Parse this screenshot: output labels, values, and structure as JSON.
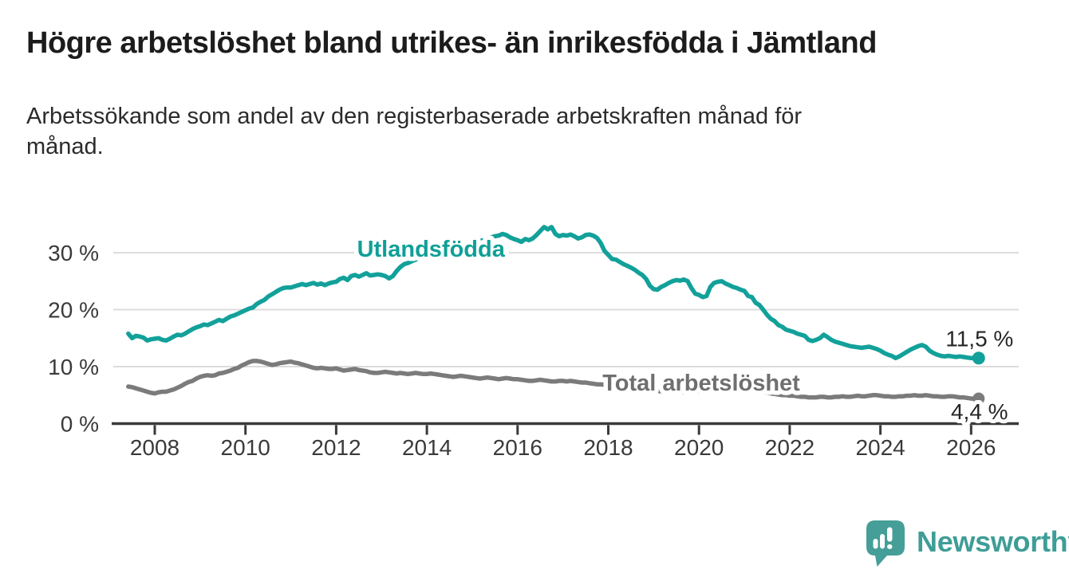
{
  "title": "Högre arbetslöshet bland utrikes- än inrikesfödda i Jämtland",
  "subtitle": "Arbetssökande som andel av den registerbaserade arbetskraften månad för månad.",
  "branding": {
    "logo_text": "Newsworthy",
    "logo_icon": "bar-chart-speech-bubble",
    "icon_color": "#459e98",
    "text_color": "#3f9d97"
  },
  "chart_data": {
    "type": "line",
    "title": "Högre arbetslöshet bland utrikes- än inrikesfödda i Jämtland",
    "xlabel": "",
    "ylabel": "",
    "grid": "horizontal",
    "x_axis": {
      "tick_years": [
        2008,
        2010,
        2012,
        2014,
        2016,
        2018,
        2020,
        2022,
        2024,
        2026
      ],
      "range_years": [
        2007.3,
        2027.1
      ]
    },
    "y_axis": {
      "unit": "%",
      "range": [
        0,
        36.5
      ],
      "ticks": [
        {
          "value": 0,
          "label": "0 %"
        },
        {
          "value": 10,
          "label": "10 %"
        },
        {
          "value": 20,
          "label": "20 %"
        },
        {
          "value": 30,
          "label": "30 %"
        }
      ]
    },
    "series": [
      {
        "id": "utlandsfodda",
        "name": "Utlandsfödda",
        "color": "#12a19a",
        "label_color": "#0fa097",
        "width": 5.5,
        "dot_r": 8,
        "label_at": {
          "year": 2014.09,
          "pct": 29.3
        },
        "end_label": {
          "text": "11,5 %",
          "dy": -15
        },
        "start_year": 2007,
        "start_month": 6,
        "freq": "monthly",
        "values": [
          15.8,
          15.0,
          15.4,
          15.3,
          15.1,
          14.6,
          14.8,
          14.9,
          15.0,
          14.7,
          14.6,
          14.9,
          15.3,
          15.6,
          15.5,
          15.8,
          16.2,
          16.6,
          16.9,
          17.1,
          17.4,
          17.3,
          17.6,
          17.9,
          18.2,
          18.0,
          18.4,
          18.8,
          19.0,
          19.3,
          19.6,
          19.9,
          20.2,
          20.4,
          21.0,
          21.4,
          21.7,
          22.3,
          22.7,
          23.1,
          23.5,
          23.8,
          23.9,
          23.9,
          24.1,
          24.3,
          24.5,
          24.3,
          24.5,
          24.7,
          24.4,
          24.6,
          24.3,
          24.6,
          24.8,
          24.9,
          25.4,
          25.6,
          25.2,
          25.9,
          26.1,
          25.8,
          26.1,
          26.4,
          26.0,
          26.1,
          26.2,
          26.1,
          25.9,
          25.5,
          25.9,
          26.8,
          27.5,
          28.0,
          28.2,
          28.5,
          28.8,
          29.0,
          29.3,
          29.5,
          29.8,
          30.0,
          30.2,
          30.5,
          30.7,
          30.9,
          31.1,
          31.2,
          31.4,
          31.5,
          31.7,
          31.8,
          32.0,
          32.1,
          32.2,
          32.4,
          32.7,
          32.9,
          33.0,
          33.3,
          33.1,
          32.7,
          32.4,
          32.2,
          31.9,
          32.4,
          32.2,
          32.5,
          33.1,
          33.8,
          34.5,
          34.1,
          34.5,
          33.3,
          32.9,
          33.1,
          33.0,
          33.2,
          32.9,
          32.5,
          32.7,
          33.1,
          33.2,
          33.0,
          32.6,
          31.7,
          30.3,
          29.6,
          28.9,
          28.8,
          28.4,
          28.0,
          27.7,
          27.4,
          27.0,
          26.5,
          26.1,
          25.4,
          24.2,
          23.6,
          23.5,
          24.0,
          24.3,
          24.7,
          25.0,
          25.2,
          25.1,
          25.3,
          25.0,
          23.8,
          22.8,
          22.6,
          22.2,
          22.4,
          24.0,
          24.7,
          24.9,
          25.0,
          24.6,
          24.3,
          24.0,
          23.8,
          23.5,
          23.3,
          22.4,
          22.2,
          21.2,
          20.8,
          20.0,
          19.1,
          18.4,
          18.0,
          17.3,
          17.0,
          16.5,
          16.3,
          16.1,
          15.8,
          15.6,
          15.4,
          14.7,
          14.5,
          14.7,
          15.0,
          15.6,
          15.2,
          14.7,
          14.4,
          14.2,
          14.0,
          13.8,
          13.6,
          13.5,
          13.4,
          13.3,
          13.4,
          13.5,
          13.3,
          13.1,
          12.8,
          12.4,
          12.1,
          11.9,
          11.5,
          11.8,
          12.2,
          12.6,
          13.0,
          13.3,
          13.6,
          13.8,
          13.5,
          12.8,
          12.4,
          12.1,
          11.9,
          11.8,
          11.9,
          11.8,
          11.7,
          11.8,
          11.7,
          11.6,
          11.5,
          11.5,
          11.5
        ]
      },
      {
        "id": "total-arbetsloshet",
        "name": "Total arbetslöshet",
        "color": "#7b7b7b",
        "label_color": "#6f6f6f",
        "width": 5.5,
        "dot_r": 7.5,
        "label_at": {
          "year": 2020.05,
          "pct": 5.8
        },
        "end_label": {
          "text": "4,4 %",
          "dy": 26
        },
        "start_year": 2007,
        "start_month": 6,
        "freq": "monthly",
        "values": [
          6.5,
          6.4,
          6.2,
          6.0,
          5.8,
          5.6,
          5.4,
          5.3,
          5.5,
          5.6,
          5.6,
          5.8,
          6.0,
          6.3,
          6.6,
          7.0,
          7.3,
          7.5,
          7.9,
          8.2,
          8.4,
          8.5,
          8.4,
          8.5,
          8.8,
          8.9,
          9.1,
          9.3,
          9.6,
          9.8,
          10.2,
          10.5,
          10.8,
          11.0,
          11.0,
          10.9,
          10.7,
          10.5,
          10.3,
          10.4,
          10.6,
          10.7,
          10.8,
          10.9,
          10.7,
          10.6,
          10.4,
          10.2,
          10.0,
          9.8,
          9.7,
          9.8,
          9.7,
          9.6,
          9.6,
          9.7,
          9.5,
          9.3,
          9.4,
          9.5,
          9.6,
          9.4,
          9.3,
          9.2,
          9.0,
          8.9,
          8.9,
          9.0,
          9.1,
          9.0,
          8.9,
          8.8,
          8.9,
          8.8,
          8.7,
          8.8,
          8.9,
          8.8,
          8.7,
          8.7,
          8.8,
          8.7,
          8.6,
          8.5,
          8.4,
          8.3,
          8.2,
          8.3,
          8.4,
          8.3,
          8.2,
          8.1,
          8.0,
          7.9,
          8.0,
          8.1,
          8.0,
          7.9,
          7.8,
          7.9,
          8.0,
          7.9,
          7.8,
          7.8,
          7.7,
          7.6,
          7.5,
          7.5,
          7.6,
          7.7,
          7.6,
          7.5,
          7.4,
          7.4,
          7.5,
          7.5,
          7.4,
          7.5,
          7.4,
          7.3,
          7.2,
          7.2,
          7.1,
          7.0,
          6.9,
          6.9,
          6.8,
          6.7,
          6.6,
          6.5,
          6.4,
          6.3,
          6.2,
          6.1,
          6.1,
          6.0,
          5.9,
          5.9,
          5.8,
          5.8,
          5.7,
          5.7,
          5.6,
          5.6,
          5.7,
          5.6,
          5.6,
          5.5,
          5.5,
          5.6,
          5.6,
          5.7,
          5.8,
          6.1,
          6.6,
          6.9,
          7.1,
          7.1,
          7.0,
          6.9,
          6.7,
          6.6,
          6.5,
          6.4,
          6.3,
          6.1,
          5.9,
          5.8,
          5.6,
          5.4,
          5.3,
          5.2,
          5.1,
          5.0,
          5.0,
          4.9,
          4.9,
          4.8,
          4.7,
          4.7,
          4.6,
          4.6,
          4.6,
          4.7,
          4.7,
          4.6,
          4.6,
          4.7,
          4.7,
          4.8,
          4.7,
          4.7,
          4.8,
          4.9,
          4.8,
          4.8,
          4.9,
          5.0,
          5.0,
          4.9,
          4.8,
          4.8,
          4.7,
          4.7,
          4.8,
          4.8,
          4.9,
          4.9,
          5.0,
          4.9,
          4.9,
          5.0,
          4.9,
          4.8,
          4.8,
          4.7,
          4.7,
          4.8,
          4.8,
          4.7,
          4.6,
          4.6,
          4.5,
          4.4,
          4.4,
          4.4
        ]
      }
    ]
  }
}
